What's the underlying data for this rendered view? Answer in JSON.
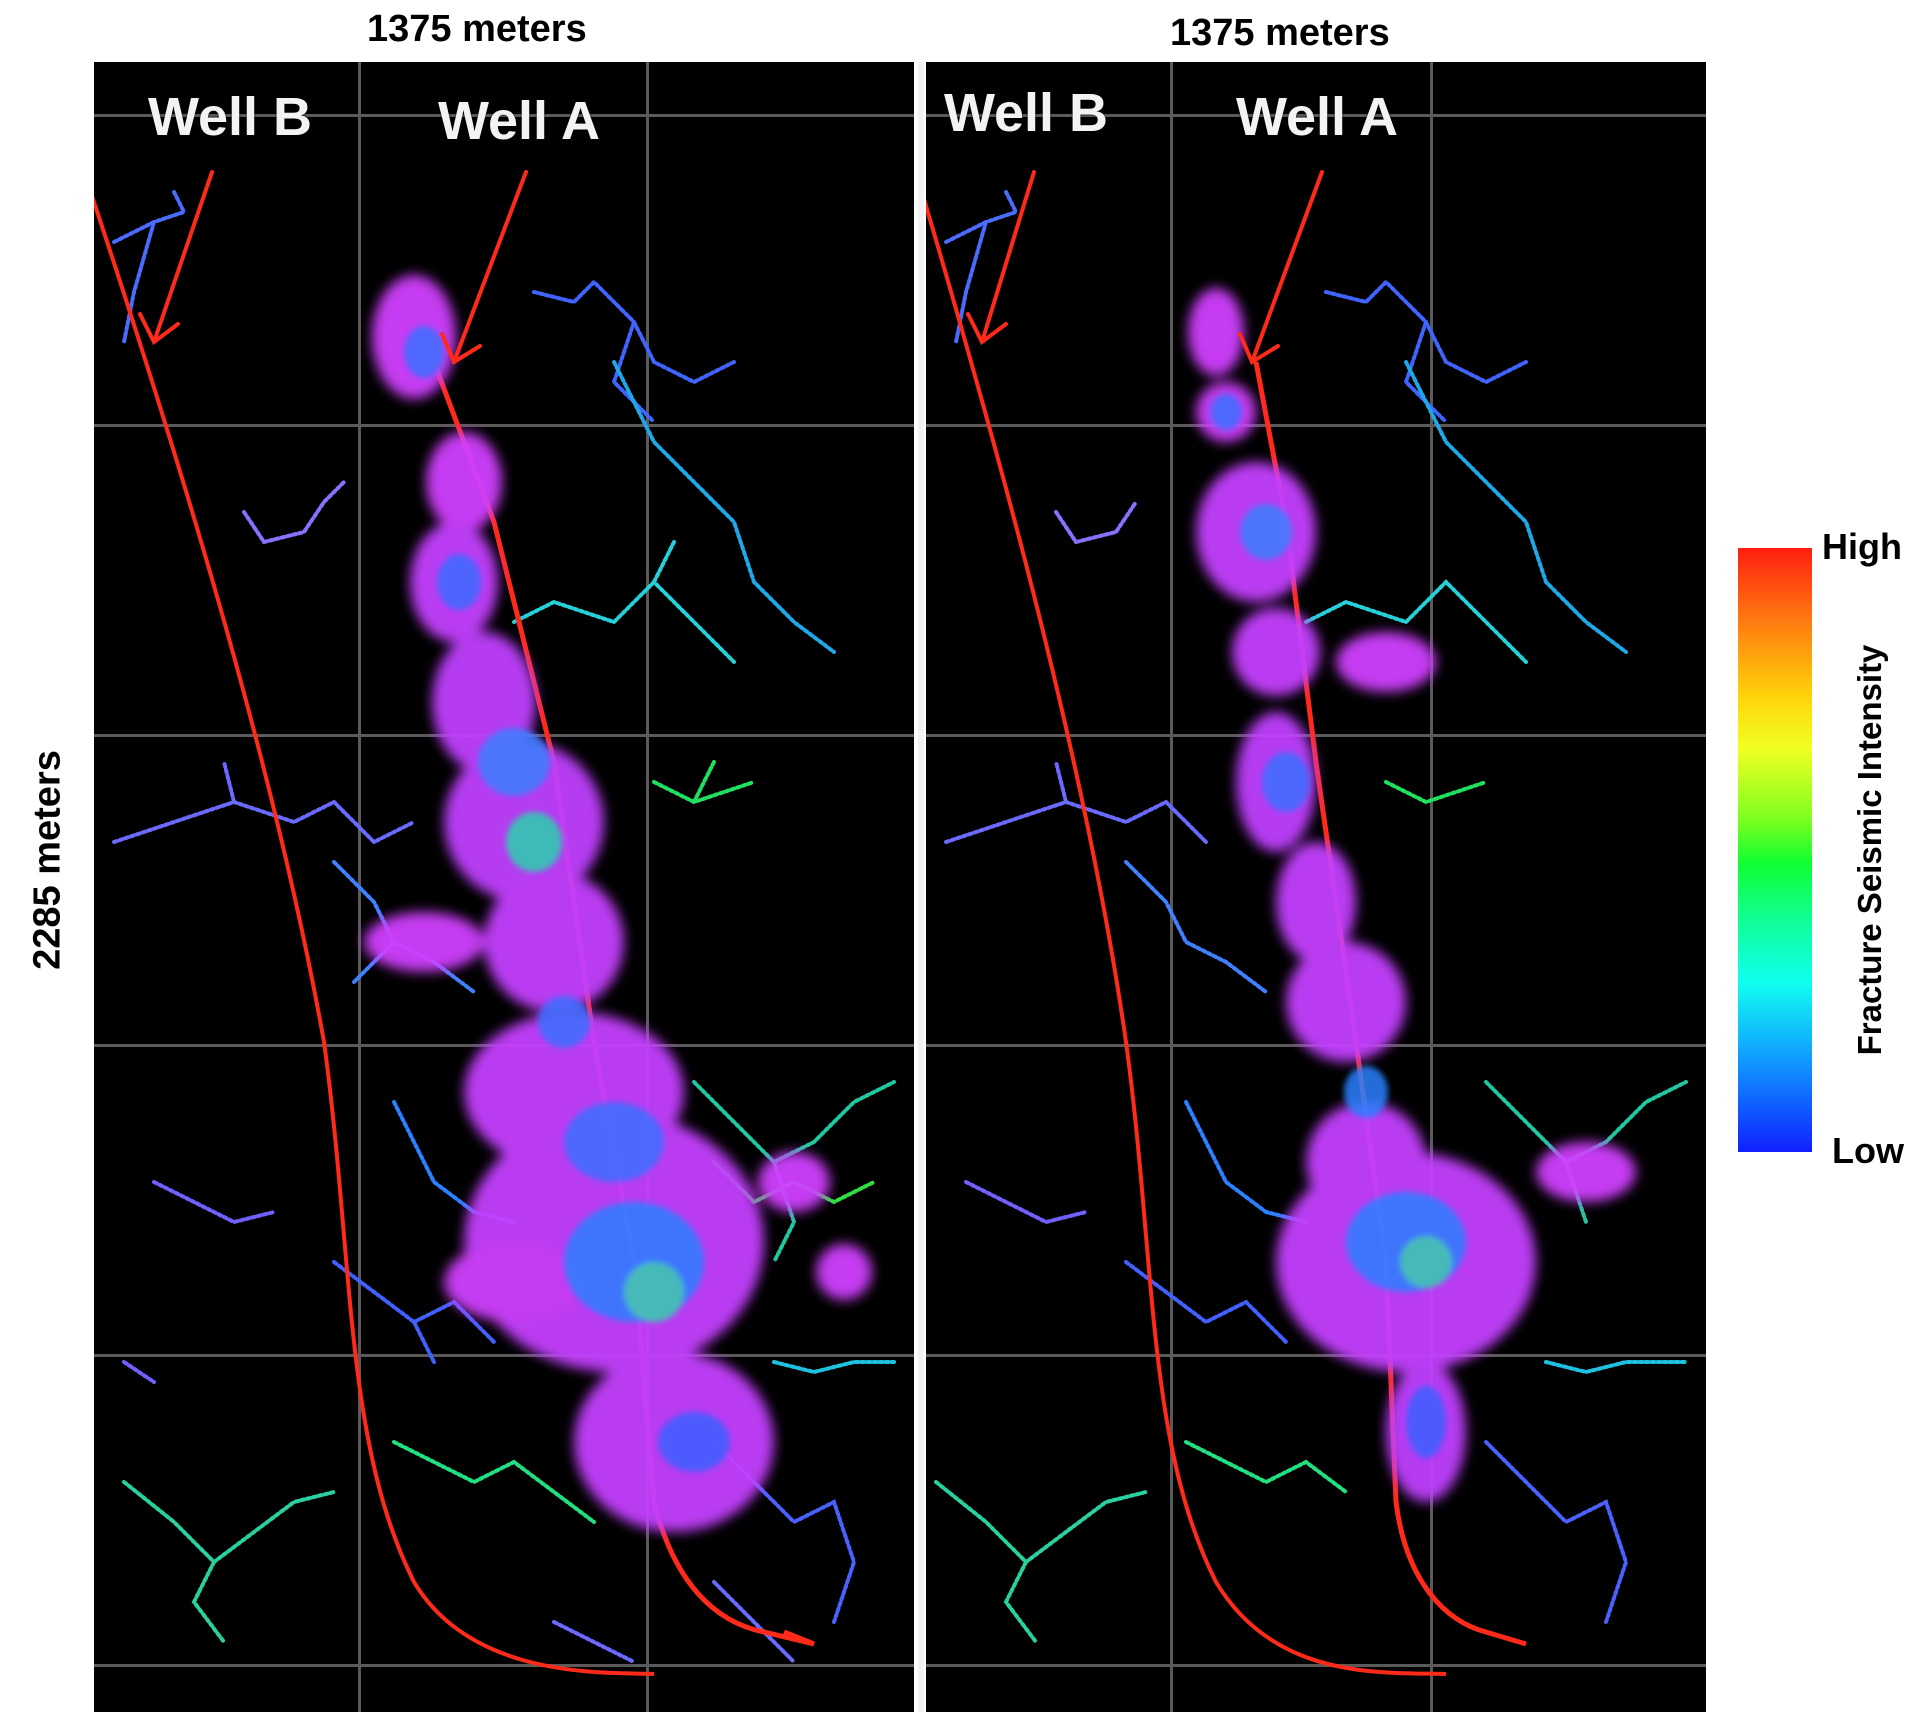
{
  "labels": {
    "top_left": "1375 meters",
    "top_right": "1375 meters",
    "side": "2285 meters"
  },
  "wells": {
    "left_b": "Well B",
    "left_a": "Well A",
    "right_b": "Well B",
    "right_a": "Well A"
  },
  "legend": {
    "high": "High",
    "low": "Low",
    "title": "Fracture Seismic Intensity",
    "colors": [
      "#ff1e10",
      "#ffd60a",
      "#10ff30",
      "#10fff0",
      "#1020ff"
    ]
  },
  "colors": {
    "background": "#000000",
    "grid": "#5a5a5a",
    "well_path": "#ff2a1a",
    "arrow": "#ff2a1a",
    "cloud": "#d040ff",
    "cloud_core": "#3a70ff",
    "fracture_blue": "#4060ff",
    "fracture_cyan": "#20d0e0",
    "fracture_violet": "#8a70ff"
  }
}
